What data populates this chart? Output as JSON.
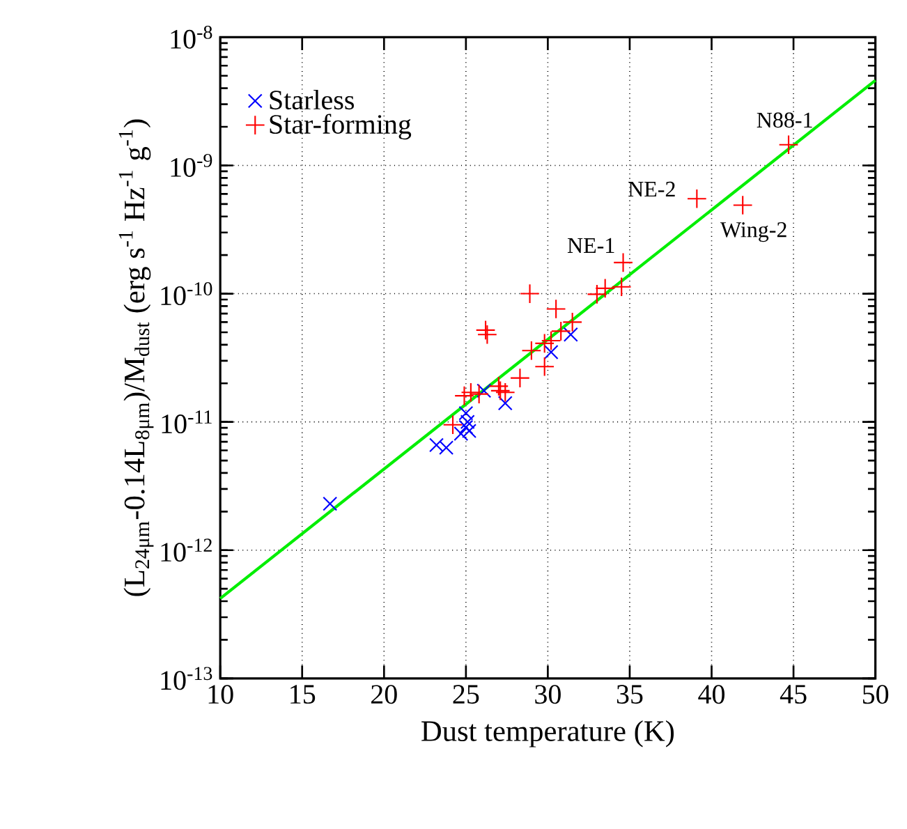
{
  "chart_data": {
    "type": "scatter",
    "xlabel": "Dust temperature (K)",
    "ylabel": "(L$_{24μm}$-0.14L$_{8μm}$)/M$_{dust}$ (erg s$^{-1}$ Hz$^{-1}$ g$^{-1}$)",
    "log": "y",
    "grid": true,
    "legend": "top left",
    "xlim": [
      10,
      50
    ],
    "xticks": [
      10,
      15,
      20,
      25,
      30,
      35,
      40,
      45,
      50
    ],
    "ylim": [
      1e-13,
      1e-08
    ],
    "yticks": [
      {
        "value": 1e-13,
        "label": "10$^{-13}$"
      },
      {
        "value": 1e-12,
        "label": "10$^{-12}$"
      },
      {
        "value": 1e-11,
        "label": "10$^{-11}$"
      },
      {
        "value": 1e-10,
        "label": "10$^{-10}$"
      },
      {
        "value": 1e-09,
        "label": "10$^{-9}$"
      },
      {
        "value": 1e-08,
        "label": "10$^{-8}$"
      }
    ],
    "series": [
      {
        "name": "Starless",
        "color": "#0000ff",
        "marker": "cross",
        "x": [
          16.7,
          23.2,
          23.8,
          25.0,
          25.1,
          25.2,
          24.7,
          25.0,
          26.1,
          27.4,
          30.2,
          31.4
        ],
        "values": [
          2.3e-12,
          6.6e-12,
          6.3e-12,
          9.1e-12,
          1e-11,
          8.5e-12,
          8.1e-12,
          1.17e-11,
          1.75e-11,
          1.4e-11,
          3.5e-11,
          4.8e-11
        ]
      },
      {
        "name": "Star-forming",
        "color": "#ff0000",
        "marker": "plus",
        "x": [
          24.2,
          24.9,
          25.3,
          25.8,
          26.2,
          26.3,
          27.0,
          27.1,
          27.4,
          28.3,
          28.9,
          29.0,
          29.8,
          29.8,
          30.2,
          30.5,
          30.8,
          31.5,
          33.0,
          33.5,
          34.5,
          34.6,
          39.1,
          41.9,
          44.7
        ],
        "values": [
          9.5e-12,
          1.6e-11,
          1.7e-11,
          1.65e-11,
          5.2e-11,
          4.8e-11,
          1.9e-11,
          1.75e-11,
          1.7e-11,
          2.2e-11,
          1e-10,
          3.6e-11,
          2.7e-11,
          4.1e-11,
          4.3e-11,
          7.6e-11,
          5.1e-11,
          6e-11,
          9.9e-11,
          1.1e-10,
          1.13e-10,
          1.75e-10,
          5.5e-10,
          4.9e-10,
          1.45e-09
        ]
      },
      {
        "type": "line",
        "color": "#00ee00",
        "marker": "none",
        "x": [
          10,
          50
        ],
        "values": [
          4.2e-13,
          4.6e-09
        ]
      }
    ],
    "annotations": [
      {
        "text": "NE-1",
        "x": 34.6,
        "y": 1.75e-10
      },
      {
        "text": "NE-2",
        "x": 39.1,
        "y": 5.5e-10
      },
      {
        "text": "Wing-2",
        "x": 41.9,
        "y": 4.9e-10
      },
      {
        "text": "N88-1",
        "x": 44.7,
        "y": 1.45e-09
      }
    ]
  }
}
